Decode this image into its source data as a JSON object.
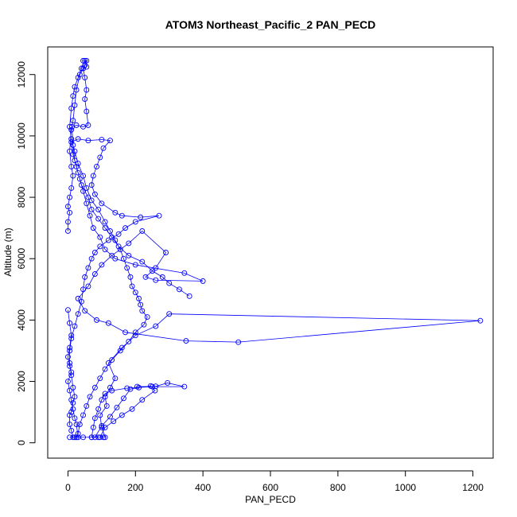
{
  "chart_data": {
    "type": "line",
    "title": "ATOM3 Northeast_Pacific_2 PAN_PECD",
    "xlabel": "PAN_PECD",
    "ylabel": "Altitude (m)",
    "xlim": [
      -60,
      1260
    ],
    "ylim": [
      -500,
      12900
    ],
    "xticks": [
      0,
      200,
      400,
      600,
      800,
      1000,
      1200
    ],
    "yticks": [
      0,
      2000,
      4000,
      6000,
      8000,
      10000,
      12000
    ],
    "marker": "open-circle",
    "grid": false,
    "legend": "none",
    "series": [
      {
        "color": "#0000ff",
        "points": [
          [
            5,
            180
          ],
          [
            20,
            180
          ],
          [
            45,
            180
          ],
          [
            70,
            180
          ],
          [
            90,
            180
          ],
          [
            105,
            180
          ],
          [
            110,
            180
          ],
          [
            100,
            500
          ],
          [
            95,
            900
          ],
          [
            115,
            1200
          ],
          [
            110,
            1500
          ],
          [
            125,
            1800
          ],
          [
            140,
            2100
          ],
          [
            120,
            2600
          ],
          [
            160,
            3100
          ],
          [
            200,
            3500
          ],
          [
            260,
            3800
          ],
          [
            300,
            4200
          ],
          [
            1222,
            3980
          ],
          [
            505,
            3280
          ],
          [
            350,
            3320
          ],
          [
            170,
            3600
          ],
          [
            120,
            3900
          ],
          [
            85,
            4000
          ],
          [
            50,
            4300
          ],
          [
            30,
            4700
          ],
          [
            60,
            5100
          ],
          [
            80,
            5500
          ],
          [
            100,
            5800
          ],
          [
            130,
            6100
          ],
          [
            180,
            6500
          ],
          [
            220,
            6900
          ],
          [
            290,
            6200
          ],
          [
            260,
            5700
          ],
          [
            230,
            5400
          ],
          [
            260,
            5300
          ],
          [
            400,
            5270
          ],
          [
            345,
            5530
          ],
          [
            200,
            5800
          ],
          [
            140,
            6000
          ],
          [
            110,
            6300
          ],
          [
            95,
            6700
          ],
          [
            75,
            7000
          ],
          [
            65,
            7400
          ],
          [
            55,
            7800
          ],
          [
            45,
            8200
          ],
          [
            35,
            8600
          ],
          [
            25,
            9000
          ],
          [
            15,
            9400
          ],
          [
            10,
            9800
          ],
          [
            30,
            9900
          ],
          [
            60,
            9850
          ],
          [
            100,
            9880
          ],
          [
            125,
            9850
          ],
          [
            105,
            9600
          ],
          [
            95,
            9300
          ],
          [
            85,
            9000
          ],
          [
            75,
            8700
          ],
          [
            70,
            8400
          ],
          [
            80,
            8100
          ],
          [
            100,
            7800
          ],
          [
            140,
            7500
          ],
          [
            160,
            7400
          ],
          [
            215,
            7350
          ],
          [
            270,
            7400
          ],
          [
            200,
            7200
          ],
          [
            170,
            7000
          ],
          [
            150,
            6800
          ],
          [
            120,
            6600
          ],
          [
            95,
            6400
          ],
          [
            80,
            6200
          ],
          [
            70,
            6000
          ],
          [
            60,
            5700
          ],
          [
            50,
            5400
          ],
          [
            45,
            5000
          ],
          [
            40,
            4600
          ],
          [
            30,
            4200
          ],
          [
            20,
            3800
          ],
          [
            10,
            3400
          ],
          [
            5,
            3000
          ],
          [
            5,
            2600
          ],
          [
            10,
            2200
          ],
          [
            15,
            1800
          ],
          [
            20,
            1500
          ],
          [
            15,
            1300
          ],
          [
            10,
            1000
          ],
          [
            5,
            900
          ],
          [
            5,
            600
          ],
          [
            10,
            400
          ],
          [
            15,
            180
          ]
        ]
      },
      {
        "color": "#0000ff",
        "points": [
          [
            360,
            4780
          ],
          [
            330,
            5000
          ],
          [
            300,
            5200
          ],
          [
            280,
            5400
          ],
          [
            250,
            5600
          ],
          [
            220,
            5900
          ],
          [
            180,
            6100
          ],
          [
            150,
            6400
          ],
          [
            130,
            6700
          ],
          [
            110,
            7000
          ],
          [
            90,
            7300
          ],
          [
            70,
            7600
          ],
          [
            60,
            8000
          ],
          [
            40,
            8400
          ],
          [
            30,
            8800
          ],
          [
            20,
            9200
          ],
          [
            15,
            9700
          ],
          [
            12,
            10300
          ],
          [
            25,
            10350
          ],
          [
            45,
            10300
          ],
          [
            60,
            10350
          ],
          [
            55,
            10800
          ],
          [
            50,
            11200
          ],
          [
            55,
            11500
          ],
          [
            50,
            11900
          ],
          [
            45,
            12200
          ],
          [
            55,
            12250
          ],
          [
            50,
            12450
          ],
          [
            45,
            12450
          ],
          [
            55,
            12450
          ],
          [
            40,
            12200
          ],
          [
            30,
            11900
          ],
          [
            20,
            11600
          ],
          [
            15,
            11300
          ],
          [
            10,
            10900
          ],
          [
            5,
            10300
          ],
          [
            10,
            9900
          ],
          [
            20,
            9500
          ],
          [
            30,
            9100
          ],
          [
            45,
            8700
          ],
          [
            55,
            8300
          ],
          [
            70,
            7900
          ],
          [
            90,
            7600
          ],
          [
            110,
            7200
          ],
          [
            125,
            6900
          ],
          [
            140,
            6600
          ],
          [
            155,
            6300
          ],
          [
            165,
            6000
          ],
          [
            175,
            5700
          ],
          [
            185,
            5400
          ],
          [
            190,
            5100
          ],
          [
            200,
            4900
          ],
          [
            210,
            4700
          ],
          [
            215,
            4500
          ],
          [
            220,
            4300
          ],
          [
            235,
            4100
          ],
          [
            225,
            3850
          ],
          [
            200,
            3600
          ],
          [
            180,
            3300
          ],
          [
            155,
            3000
          ],
          [
            130,
            2700
          ],
          [
            110,
            2400
          ],
          [
            95,
            2100
          ],
          [
            80,
            1800
          ],
          [
            65,
            1500
          ],
          [
            55,
            1200
          ],
          [
            45,
            900
          ],
          [
            35,
            600
          ],
          [
            30,
            300
          ],
          [
            25,
            180
          ]
        ]
      },
      {
        "color": "#0000ff",
        "points": [
          [
            205,
            1830
          ],
          [
            260,
            1840
          ],
          [
            295,
            1950
          ],
          [
            345,
            1830
          ],
          [
            250,
            1830
          ],
          [
            175,
            1780
          ],
          [
            130,
            1700
          ],
          [
            110,
            1600
          ],
          [
            100,
            1400
          ],
          [
            90,
            1100
          ],
          [
            80,
            800
          ],
          [
            75,
            500
          ],
          [
            70,
            180
          ],
          [
            80,
            180
          ],
          [
            100,
            550
          ],
          [
            125,
            850
          ],
          [
            145,
            1150
          ],
          [
            165,
            1450
          ],
          [
            185,
            1750
          ],
          [
            210,
            1800
          ],
          [
            245,
            1850
          ],
          [
            258,
            1700
          ],
          [
            220,
            1400
          ],
          [
            190,
            1100
          ],
          [
            160,
            900
          ],
          [
            135,
            700
          ],
          [
            110,
            500
          ],
          [
            95,
            180
          ]
        ]
      },
      {
        "color": "#0000ff",
        "points": [
          [
            0,
            4330
          ],
          [
            5,
            3900
          ],
          [
            10,
            3500
          ],
          [
            5,
            3100
          ],
          [
            0,
            2800
          ],
          [
            5,
            2500
          ],
          [
            10,
            2300
          ],
          [
            0,
            2000
          ],
          [
            5,
            1700
          ],
          [
            10,
            1400
          ],
          [
            15,
            1100
          ],
          [
            20,
            800
          ],
          [
            25,
            600
          ],
          [
            30,
            180
          ]
        ]
      },
      {
        "color": "#0000ff",
        "points": [
          [
            0,
            6900
          ],
          [
            0,
            7200
          ],
          [
            5,
            7500
          ],
          [
            0,
            7700
          ],
          [
            5,
            8000
          ],
          [
            10,
            8300
          ],
          [
            15,
            8700
          ],
          [
            10,
            9000
          ],
          [
            5,
            9500
          ],
          [
            10,
            10200
          ],
          [
            15,
            10500
          ],
          [
            20,
            11000
          ],
          [
            25,
            11500
          ],
          [
            35,
            12000
          ],
          [
            50,
            12300
          ]
        ]
      }
    ]
  }
}
